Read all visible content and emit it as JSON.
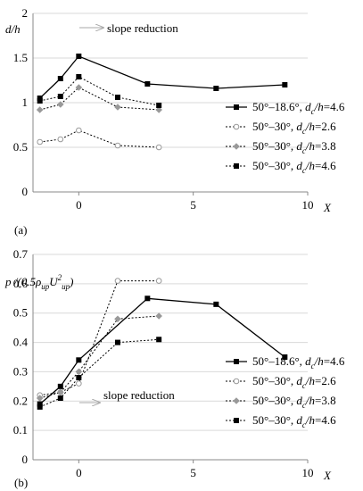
{
  "chart_data": [
    {
      "type": "line",
      "panel_label": "(a)",
      "ylabel": "d/h",
      "xlabel": "X",
      "xlim": [
        -2,
        10
      ],
      "ylim": [
        0,
        2
      ],
      "xticks": [
        0,
        5,
        10
      ],
      "yticks": [
        0,
        0.5,
        1,
        1.5,
        2
      ],
      "ytick_labels": [
        "0",
        "0.5",
        "1",
        "1.5",
        "2"
      ],
      "grid": "horizontal",
      "legend_position": "lower-right",
      "annotation": "slope reduction",
      "series": [
        {
          "name": "50°–18.6°, dc/h=4.6",
          "angle": "50°–18.6°",
          "ratio": "4.6",
          "style": "solid",
          "marker": "square",
          "x": [
            -1.7,
            -0.8,
            0,
            3,
            6,
            9
          ],
          "y": [
            1.05,
            1.27,
            1.52,
            1.21,
            1.16,
            1.2
          ]
        },
        {
          "name": "50°–30°, dc/h=2.6",
          "angle": "50°–30°",
          "ratio": "2.6",
          "style": "dotted",
          "marker": "open-circle",
          "x": [
            -1.7,
            -0.8,
            0,
            1.7,
            3.5
          ],
          "y": [
            0.56,
            0.59,
            0.69,
            0.52,
            0.5
          ]
        },
        {
          "name": "50°–30°, dc/h=3.8",
          "angle": "50°–30°",
          "ratio": "3.8",
          "style": "dotted",
          "marker": "diamond",
          "x": [
            -1.7,
            -0.8,
            0,
            1.7,
            3.5
          ],
          "y": [
            0.92,
            0.98,
            1.17,
            0.95,
            0.92
          ]
        },
        {
          "name": "50°–30°, dc/h=4.6",
          "angle": "50°–30°",
          "ratio": "4.6",
          "style": "dotted",
          "marker": "square",
          "x": [
            -1.7,
            -0.8,
            0,
            1.7,
            3.5
          ],
          "y": [
            1.02,
            1.07,
            1.29,
            1.06,
            0.97
          ]
        }
      ]
    },
    {
      "type": "line",
      "panel_label": "(b)",
      "ylabel": "p/(0.5ρupU²up)",
      "xlabel": "X",
      "xlim": [
        -2,
        10
      ],
      "ylim": [
        0,
        0.7
      ],
      "xticks": [
        0,
        5,
        10
      ],
      "yticks": [
        0,
        0.1,
        0.2,
        0.3,
        0.4,
        0.5,
        0.6,
        0.7
      ],
      "ytick_labels": [
        "0",
        "0.1",
        "0.2",
        "0.3",
        "0.4",
        "0.5",
        "0.6",
        "0.7"
      ],
      "grid": "horizontal",
      "legend_position": "lower-right",
      "annotation": "slope reduction",
      "series": [
        {
          "name": "50°–18.6°, dc/h=4.6",
          "angle": "50°–18.6°",
          "ratio": "4.6",
          "style": "solid",
          "marker": "square",
          "x": [
            -1.7,
            -0.8,
            0,
            3,
            6,
            9
          ],
          "y": [
            0.19,
            0.25,
            0.34,
            0.55,
            0.53,
            0.35
          ]
        },
        {
          "name": "50°–30°, dc/h=2.6",
          "angle": "50°–30°",
          "ratio": "2.6",
          "style": "dotted",
          "marker": "open-circle",
          "x": [
            -1.7,
            -0.8,
            0,
            1.7,
            3.5
          ],
          "y": [
            0.22,
            0.23,
            0.26,
            0.61,
            0.61
          ]
        },
        {
          "name": "50°–30°, dc/h=3.8",
          "angle": "50°–30°",
          "ratio": "3.8",
          "style": "dotted",
          "marker": "diamond",
          "x": [
            -1.7,
            -0.8,
            0,
            1.7,
            3.5
          ],
          "y": [
            0.21,
            0.23,
            0.3,
            0.48,
            0.49
          ]
        },
        {
          "name": "50°–30°, dc/h=4.6",
          "angle": "50°–30°",
          "ratio": "4.6",
          "style": "dotted",
          "marker": "square",
          "x": [
            -1.7,
            -0.8,
            0,
            1.7,
            3.5
          ],
          "y": [
            0.18,
            0.21,
            0.28,
            0.4,
            0.41
          ]
        }
      ]
    }
  ]
}
